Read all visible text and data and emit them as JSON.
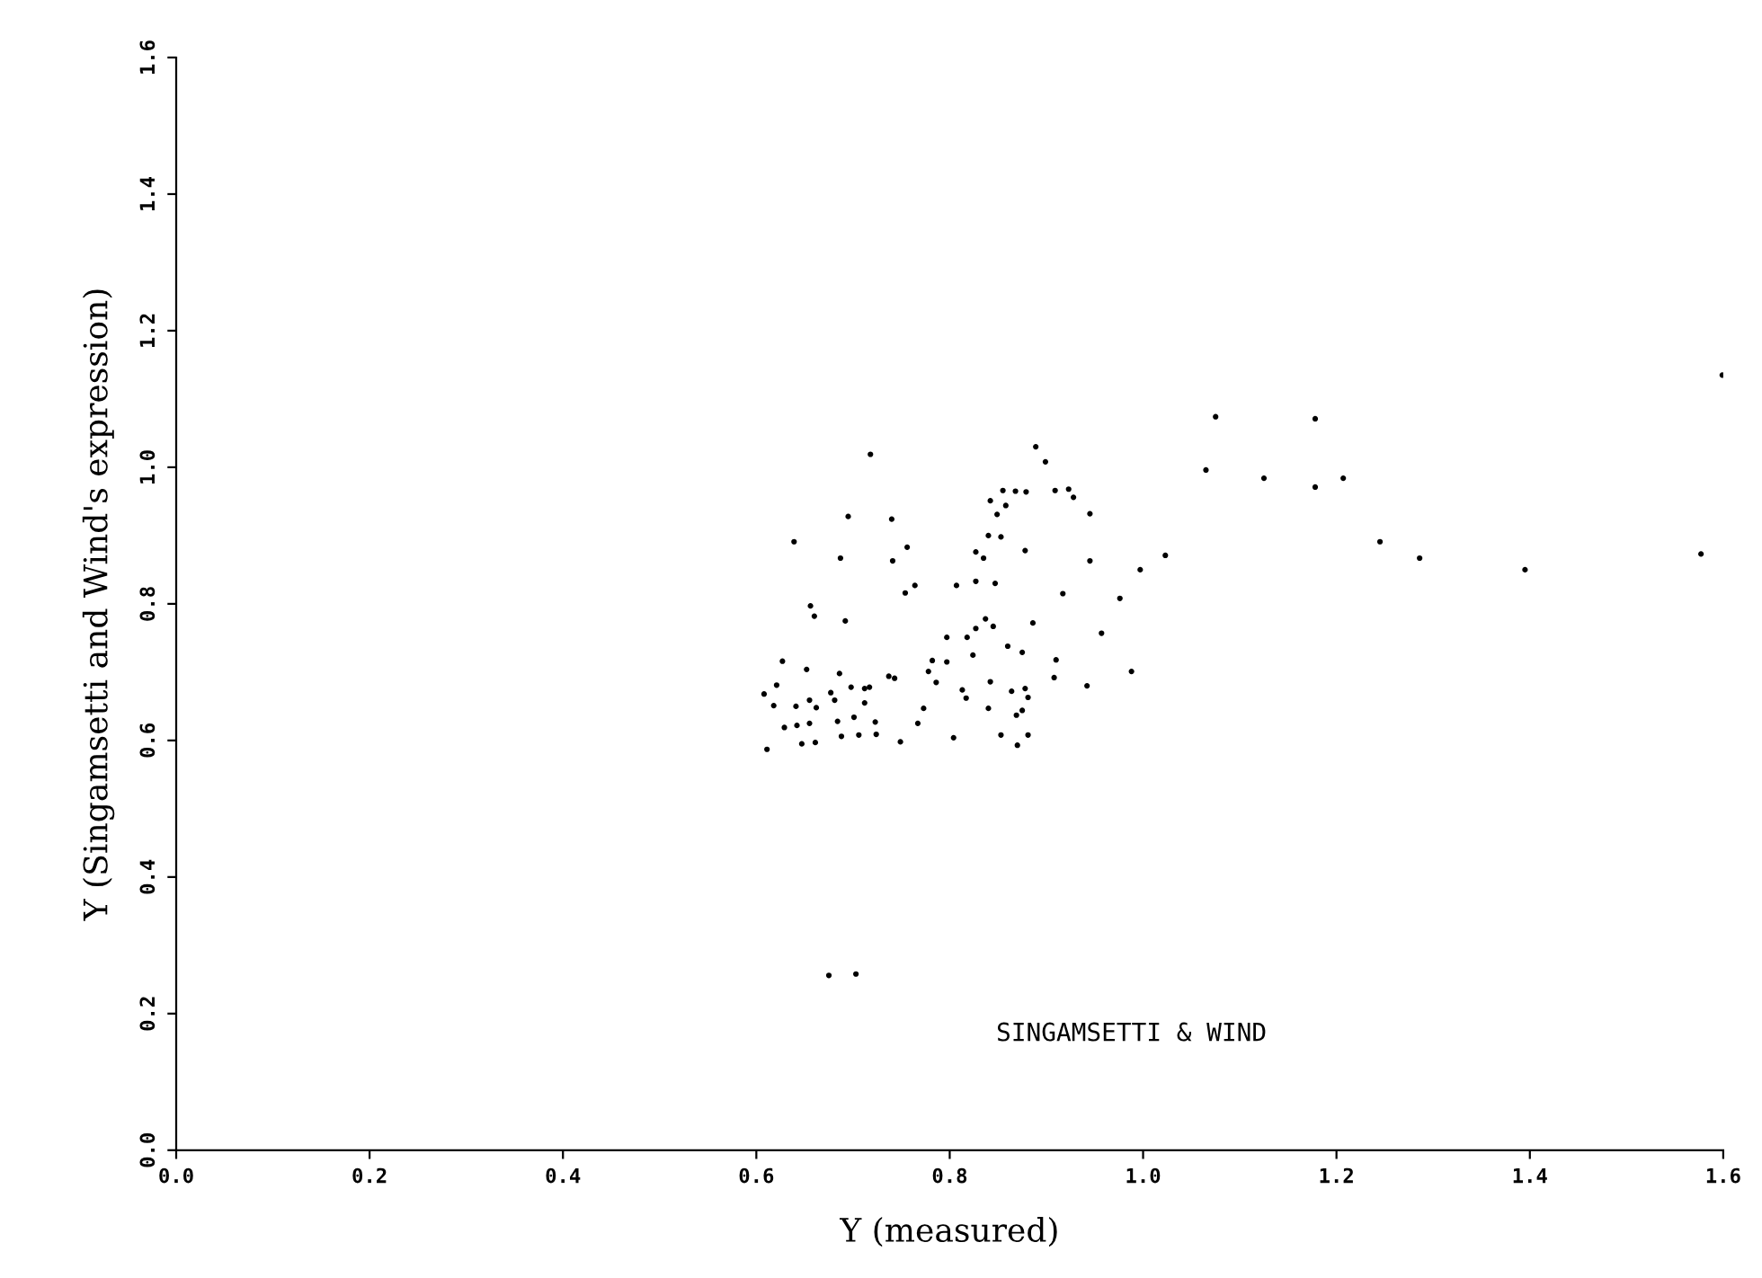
{
  "chart_data": {
    "type": "scatter",
    "xlabel": "Y (measured)",
    "ylabel": "Y (Singamsetti and Wind's expression)",
    "annotations": [
      "SINGAMSETTI & WIND"
    ],
    "xlim": [
      0,
      1.6
    ],
    "ylim": [
      0,
      1.6
    ],
    "xticks": [
      {
        "value": 0,
        "label": "0.0"
      },
      0.2,
      0.4,
      0.6,
      0.8,
      {
        "value": 1,
        "label": "1.0"
      },
      1.2,
      1.4,
      1.6
    ],
    "yticks": [
      {
        "value": 0,
        "label": "0.0"
      },
      0.2,
      0.4,
      0.6,
      0.8,
      {
        "value": 1,
        "label": "1.0"
      },
      1.2,
      1.4,
      1.6
    ],
    "grid": false,
    "legend": false,
    "marker": "circle",
    "series": [
      {
        "color": "#000000",
        "x": [
          0.718,
          0.889,
          0.899,
          0.855,
          0.868,
          0.879,
          0.909,
          0.923,
          0.928,
          0.945,
          0.842,
          0.858,
          0.849,
          0.695,
          0.74,
          0.639,
          0.756,
          0.84,
          0.853,
          0.878,
          1.023,
          0.997,
          0.945,
          0.687,
          0.741,
          0.827,
          0.835,
          0.827,
          0.847,
          0.807,
          0.764,
          0.754,
          0.917,
          0.976,
          0.656,
          0.66,
          0.692,
          0.837,
          0.845,
          0.827,
          0.818,
          0.797,
          0.886,
          0.957,
          0.86,
          0.875,
          0.824,
          0.91,
          0.988,
          0.782,
          0.797,
          0.778,
          0.786,
          0.908,
          0.942,
          0.842,
          0.864,
          0.878,
          0.881,
          0.813,
          0.817,
          0.84,
          0.869,
          0.875,
          0.853,
          0.881,
          0.87,
          0.804,
          0.773,
          0.767,
          0.749,
          0.724,
          0.723,
          0.706,
          0.701,
          0.688,
          0.684,
          0.661,
          0.647,
          0.611,
          0.629,
          0.642,
          0.655,
          0.641,
          0.618,
          0.608,
          0.662,
          0.655,
          0.677,
          0.681,
          0.698,
          0.712,
          0.717,
          0.712,
          0.686,
          0.737,
          0.743,
          0.652,
          0.627,
          0.621,
          1.599,
          1.178,
          1.075,
          1.065,
          1.125,
          1.207,
          1.178,
          1.245,
          1.286,
          1.395,
          1.577,
          0.675,
          0.703
        ],
        "values": [
          1.019,
          1.03,
          1.008,
          0.966,
          0.965,
          0.964,
          0.966,
          0.968,
          0.956,
          0.932,
          0.951,
          0.944,
          0.931,
          0.928,
          0.924,
          0.891,
          0.883,
          0.9,
          0.898,
          0.878,
          0.871,
          0.85,
          0.863,
          0.867,
          0.863,
          0.876,
          0.867,
          0.833,
          0.83,
          0.827,
          0.827,
          0.816,
          0.815,
          0.808,
          0.797,
          0.782,
          0.775,
          0.778,
          0.767,
          0.764,
          0.751,
          0.751,
          0.772,
          0.757,
          0.738,
          0.729,
          0.725,
          0.718,
          0.701,
          0.717,
          0.715,
          0.701,
          0.685,
          0.692,
          0.68,
          0.686,
          0.672,
          0.676,
          0.663,
          0.674,
          0.662,
          0.647,
          0.637,
          0.644,
          0.608,
          0.608,
          0.593,
          0.604,
          0.647,
          0.625,
          0.598,
          0.609,
          0.627,
          0.608,
          0.634,
          0.606,
          0.628,
          0.597,
          0.595,
          0.587,
          0.619,
          0.622,
          0.625,
          0.65,
          0.651,
          0.668,
          0.648,
          0.659,
          0.67,
          0.659,
          0.678,
          0.676,
          0.678,
          0.655,
          0.698,
          0.694,
          0.691,
          0.704,
          0.716,
          0.681,
          1.135,
          1.071,
          1.074,
          0.996,
          0.984,
          0.984,
          0.971,
          0.891,
          0.867,
          0.85,
          0.873,
          0.256,
          0.258
        ]
      }
    ]
  }
}
